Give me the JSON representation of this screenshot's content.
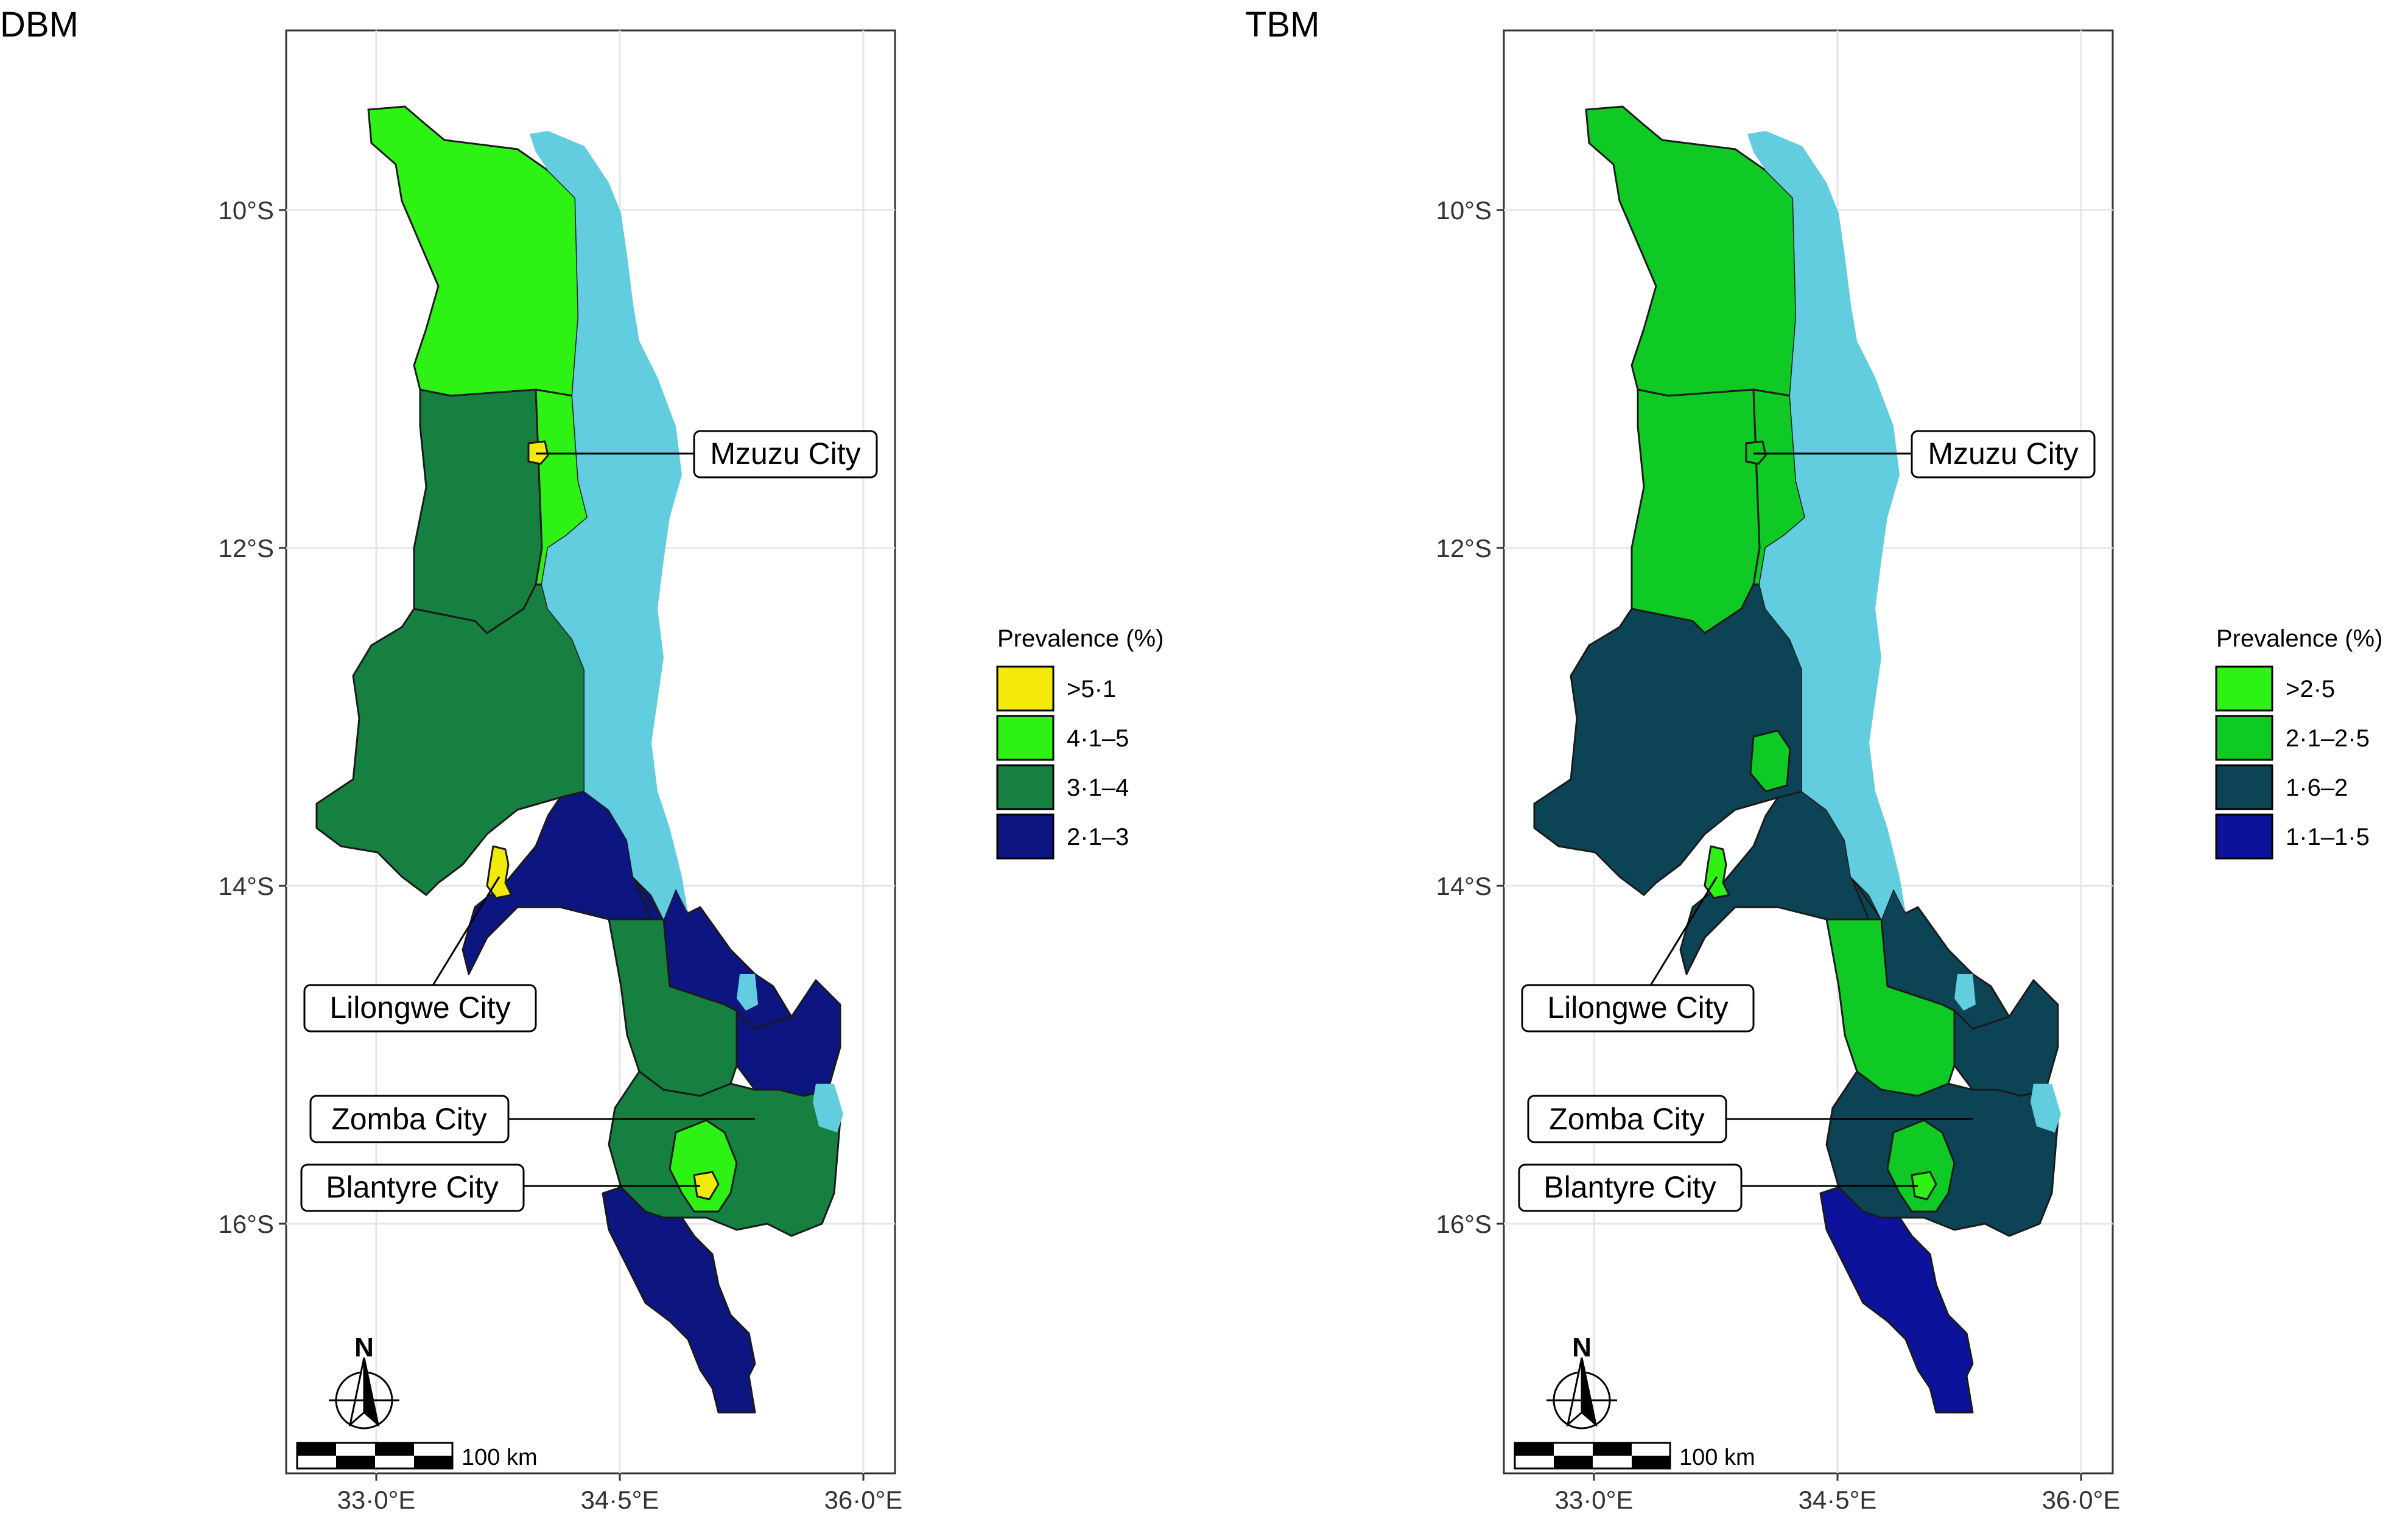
{
  "panels": [
    {
      "title": "DBM",
      "legend": {
        "title": "Prevalence (%)",
        "items": [
          {
            "label": ">5·1",
            "color": "#f3ea0b"
          },
          {
            "label": "4·1–5",
            "color": "#2ef213"
          },
          {
            "label": "3·1–4",
            "color": "#168040"
          },
          {
            "label": "2·1–3",
            "color": "#0c1580"
          }
        ]
      },
      "district_colors": {
        "north": "#2ef213",
        "mzuzu": "#f3ea0b",
        "mzimba": "#168040",
        "nkhatabay": "#2ef213",
        "central": "#168040",
        "lilongwe_city": "#f3ea0b",
        "salima_dedza": "#0c1580",
        "mangochi_machinga": "#0c1580",
        "east_south": "#0c1580",
        "south_mid": "#168040",
        "zomba": "#168040",
        "blantyre": "#2ef213",
        "blantyre_city": "#f3ea0b",
        "far_south": "#0c1580"
      }
    },
    {
      "title": "TBM",
      "legend": {
        "title": "Prevalence (%)",
        "items": [
          {
            "label": ">2·5",
            "color": "#2ef213"
          },
          {
            "label": "2·1–2·5",
            "color": "#0fc924"
          },
          {
            "label": "1·6–2",
            "color": "#0c4456"
          },
          {
            "label": "1·1–1·5",
            "color": "#0c139a"
          }
        ]
      },
      "district_colors": {
        "north": "#0fc924",
        "mzuzu": "#0fc924",
        "mzimba": "#0fc924",
        "nkhatabay": "#0fc924",
        "central": "#0c4456",
        "lilongwe_city": "#2ef213",
        "salima_dedza": "#0c4456",
        "mangochi_machinga": "#0c4456",
        "east_south": "#0c4456",
        "south_mid": "#0fc924",
        "zomba": "#0c4456",
        "blantyre": "#0fc924",
        "blantyre_city": "#2ef213",
        "far_south": "#0c139a",
        "ntchisi": "#0fc924"
      }
    }
  ],
  "lake_color": "#63cde0",
  "y_ticks": [
    "10°S",
    "12°S",
    "14°S",
    "16°S"
  ],
  "x_ticks": [
    "33·0°E",
    "34·5°E",
    "36·0°E"
  ],
  "cities": [
    "Mzuzu City",
    "Lilongwe City",
    "Zomba City",
    "Blantyre City"
  ],
  "scale_bar_label": "100 km",
  "north_arrow_label": "N"
}
